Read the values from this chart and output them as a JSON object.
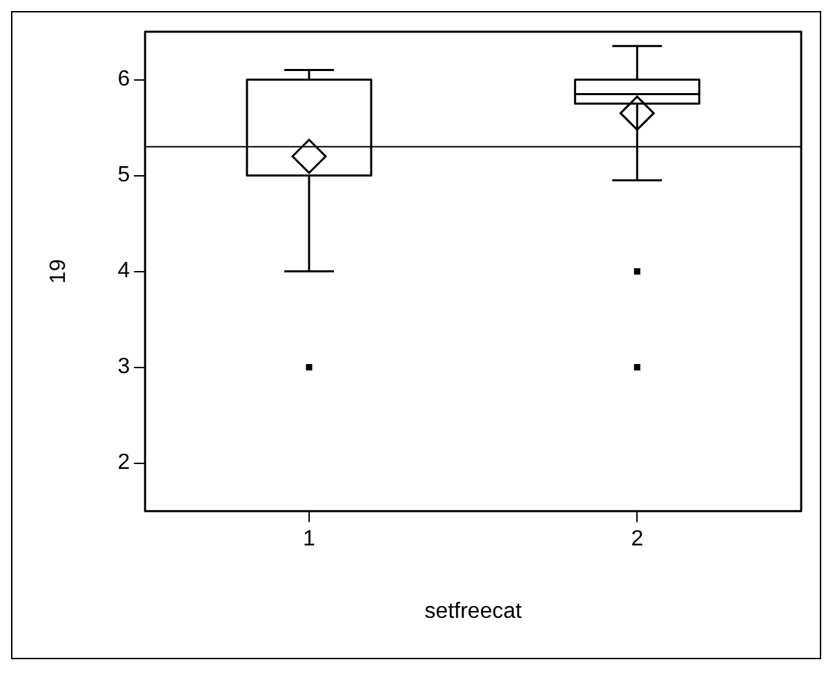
{
  "chart_data": {
    "type": "box",
    "xlabel": "setfreecat",
    "ylabel": "19",
    "categories": [
      "1",
      "2"
    ],
    "color": "#000000",
    "boxes": [
      {
        "low": 4,
        "q1": 5,
        "median": 5,
        "q3": 6,
        "high": 6.1,
        "mean": 5.2,
        "outliers": [
          3
        ]
      },
      {
        "low": 4.95,
        "q1": 5.75,
        "median": 5.85,
        "q3": 6,
        "high": 6.35,
        "mean": 5.65,
        "outliers": [
          3,
          4
        ]
      }
    ],
    "ylim": [
      1.5,
      6.5
    ],
    "yticks": [
      2,
      3,
      4,
      5,
      6
    ],
    "grid": false,
    "legend": false,
    "ref_lines": [
      {
        "axis": "y",
        "value": 5.3
      }
    ]
  }
}
